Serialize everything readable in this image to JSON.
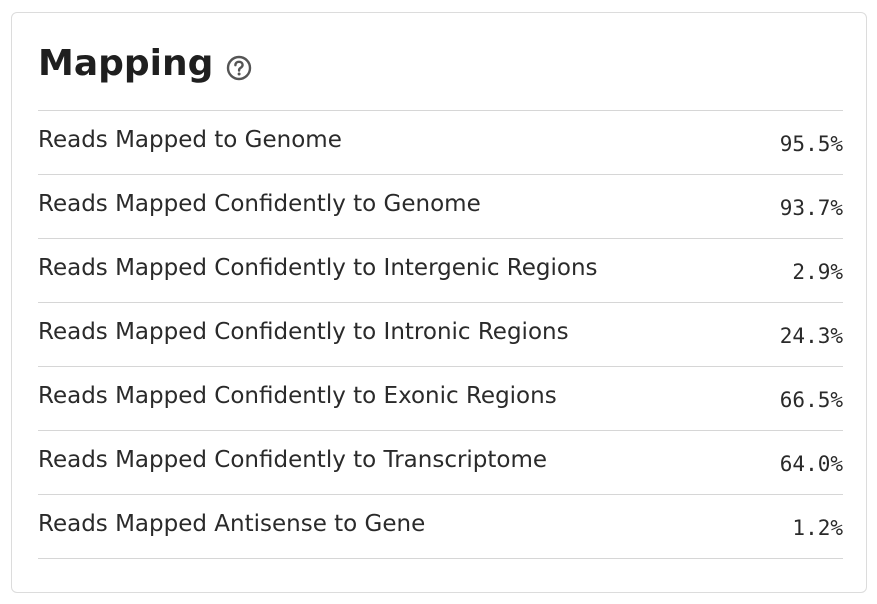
{
  "panel": {
    "title": "Mapping",
    "help_icon": "question-circle-icon"
  },
  "metrics": [
    {
      "label": "Reads Mapped to Genome",
      "value": "95.5%"
    },
    {
      "label": "Reads Mapped Confidently to Genome",
      "value": "93.7%"
    },
    {
      "label": "Reads Mapped Confidently to Intergenic Regions",
      "value": "2.9%"
    },
    {
      "label": "Reads Mapped Confidently to Intronic Regions",
      "value": "24.3%"
    },
    {
      "label": "Reads Mapped Confidently to Exonic Regions",
      "value": "66.5%"
    },
    {
      "label": "Reads Mapped Confidently to Transcriptome",
      "value": "64.0%"
    },
    {
      "label": "Reads Mapped Antisense to Gene",
      "value": "1.2%"
    }
  ]
}
